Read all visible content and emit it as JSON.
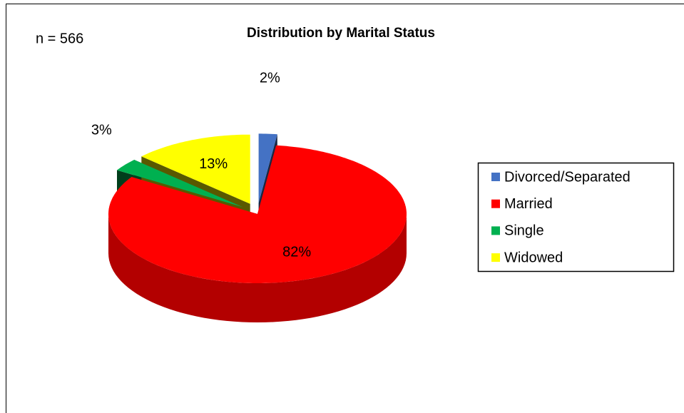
{
  "chart_data": {
    "type": "pie",
    "title": "Distribution by Marital Status",
    "annotation": "n = 566",
    "categories": [
      "Divorced/Separated",
      "Married",
      "Single",
      "Widowed"
    ],
    "values": [
      2,
      82,
      3,
      13
    ],
    "value_labels": [
      "2%",
      "82%",
      "3%",
      "13%"
    ],
    "colors": [
      "#4472c4",
      "#ff0000",
      "#00b050",
      "#ffff00"
    ],
    "legend": "right"
  }
}
